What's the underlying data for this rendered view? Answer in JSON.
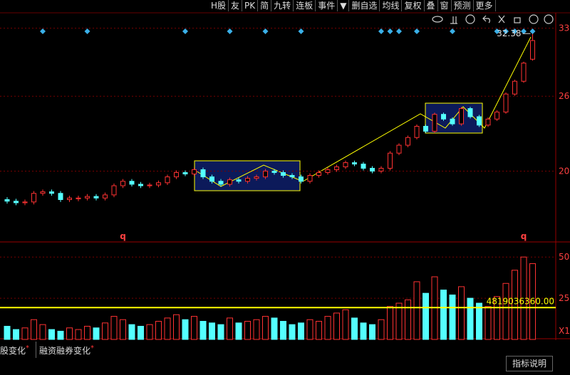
{
  "toolbar": {
    "items": [
      "H股",
      "友",
      "PK",
      "简",
      "九转",
      "连板",
      "事件",
      "▼",
      "删自选",
      "均线",
      "复权",
      "叠",
      "窗",
      "预测",
      "更多"
    ]
  },
  "chart_data": [
    {
      "type": "candlestick",
      "log_scale": true,
      "up_color": "#ff3232",
      "down_color": "#54ffff",
      "ylim": [
        15.8,
        33.8
      ],
      "yticks": [
        20,
        26,
        33
      ],
      "grid": true,
      "open": [
        18.1,
        18.0,
        17.9,
        17.95,
        18.5,
        18.6,
        18.5,
        18.1,
        18.15,
        18.2,
        18.3,
        18.2,
        18.4,
        19.0,
        19.3,
        19.1,
        19.0,
        19.05,
        19.2,
        19.6,
        19.9,
        19.8,
        20.1,
        19.6,
        19.3,
        19.1,
        19.4,
        19.3,
        19.5,
        19.6,
        20.0,
        19.9,
        19.7,
        19.6,
        19.3,
        19.7,
        19.9,
        20.1,
        20.3,
        20.6,
        20.5,
        20.2,
        20.0,
        20.2,
        21.3,
        21.9,
        22.5,
        23.4,
        23.0,
        24.4,
        24.0,
        23.6,
        24.9,
        24.2,
        23.5,
        24.0,
        24.6,
        26.2,
        27.4,
        29.6
      ],
      "high": [
        18.25,
        18.15,
        18.1,
        18.65,
        18.75,
        18.75,
        18.65,
        18.35,
        18.35,
        18.45,
        18.45,
        18.55,
        19.15,
        19.45,
        19.45,
        19.25,
        19.2,
        19.35,
        19.75,
        20.05,
        20.05,
        20.25,
        20.25,
        19.75,
        19.45,
        19.55,
        19.55,
        19.65,
        19.75,
        20.15,
        20.15,
        20.05,
        19.85,
        19.75,
        19.85,
        20.05,
        20.25,
        20.45,
        20.75,
        20.75,
        20.65,
        20.35,
        20.35,
        21.45,
        22.05,
        22.65,
        23.55,
        23.55,
        24.55,
        24.55,
        24.15,
        25.05,
        25.05,
        24.35,
        24.15,
        24.75,
        26.35,
        27.55,
        29.35,
        32.38
      ],
      "low": [
        17.85,
        17.75,
        17.75,
        17.8,
        18.35,
        18.35,
        17.95,
        17.95,
        18.0,
        18.05,
        18.05,
        18.05,
        18.25,
        18.85,
        18.95,
        18.85,
        18.85,
        18.9,
        19.05,
        19.45,
        19.65,
        19.65,
        19.45,
        19.15,
        18.95,
        18.95,
        19.15,
        19.15,
        19.35,
        19.45,
        19.75,
        19.55,
        19.45,
        19.15,
        19.15,
        19.55,
        19.75,
        19.95,
        20.15,
        20.35,
        20.05,
        19.85,
        19.85,
        20.05,
        21.15,
        21.75,
        22.35,
        22.85,
        22.85,
        23.85,
        23.45,
        23.45,
        24.05,
        23.35,
        23.35,
        23.85,
        24.45,
        26.05,
        27.25,
        29.45
      ],
      "close": [
        18.0,
        17.9,
        17.95,
        18.5,
        18.6,
        18.5,
        18.1,
        18.2,
        18.2,
        18.3,
        18.2,
        18.4,
        19.0,
        19.3,
        19.1,
        19.0,
        19.05,
        19.2,
        19.6,
        19.9,
        19.8,
        20.1,
        19.6,
        19.3,
        19.1,
        19.4,
        19.3,
        19.5,
        19.6,
        20.0,
        19.9,
        19.7,
        19.6,
        19.3,
        19.7,
        19.9,
        20.1,
        20.3,
        20.6,
        20.5,
        20.2,
        20.0,
        20.2,
        21.3,
        21.9,
        22.5,
        23.4,
        23.0,
        24.4,
        24.0,
        23.6,
        24.9,
        24.2,
        23.5,
        24.0,
        24.6,
        26.2,
        27.4,
        29.2,
        31.6
      ],
      "signal_bars": [
        4,
        9,
        20,
        25,
        29,
        33,
        42,
        43,
        44,
        46,
        50,
        55,
        56,
        57,
        58,
        59
      ],
      "signal_color": "#3ab0e8",
      "q_markers": [
        {
          "index": 13,
          "label": "q"
        },
        {
          "index": 58,
          "label": "q"
        }
      ]
    },
    {
      "type": "volume",
      "ylim": [
        0,
        57
      ],
      "yticks": [
        25,
        50
      ],
      "unit_label": "X1",
      "values": [
        8,
        6,
        7,
        12,
        9,
        6,
        5,
        7,
        6,
        8,
        7,
        10,
        14,
        12,
        9,
        8,
        9,
        11,
        13,
        15,
        12,
        14,
        11,
        10,
        9,
        13,
        10,
        11,
        12,
        14,
        13,
        11,
        9,
        10,
        12,
        11,
        14,
        16,
        18,
        13,
        10,
        9,
        12,
        20,
        22,
        24,
        35,
        28,
        38,
        30,
        27,
        32,
        25,
        22,
        20,
        26,
        34,
        42,
        50,
        46
      ],
      "reference_line": 19.3,
      "reference_color": "#ffff00",
      "annotation": "4819036360.00"
    }
  ],
  "tabs": [
    "股变化",
    "融资融券变化",
    "指标说明"
  ]
}
